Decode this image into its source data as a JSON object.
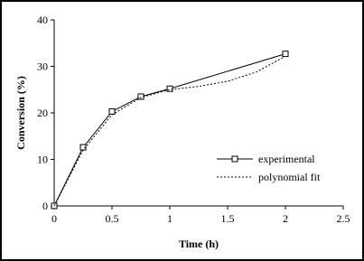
{
  "chart_data": {
    "type": "line",
    "x_label": "Time (h)",
    "y_label": "Conversion (%)",
    "xlim": [
      0,
      2.5
    ],
    "xticks": [
      0,
      0.5,
      1,
      1.5,
      2,
      2.5
    ],
    "ylim": [
      0,
      40
    ],
    "yticks": [
      0,
      10,
      20,
      30,
      40
    ],
    "grid": false,
    "legend": "lower right",
    "series": [
      {
        "name": "experimental",
        "color": "#000000",
        "line_style": "solid",
        "marker": "square",
        "x": [
          0,
          0.25,
          0.5,
          0.75,
          1,
          2
        ],
        "values": [
          0,
          12.6,
          20.3,
          23.5,
          25.2,
          32.7
        ]
      },
      {
        "name": "polynomial fit",
        "color": "#000000",
        "line_style": "dotted",
        "marker": "none",
        "x": [
          0,
          0.25,
          0.5,
          0.75,
          1,
          1.25,
          1.5,
          1.75,
          2
        ],
        "values": [
          0,
          12,
          19.6,
          23.3,
          25,
          25.7,
          26.8,
          28.8,
          32.2
        ]
      }
    ]
  }
}
